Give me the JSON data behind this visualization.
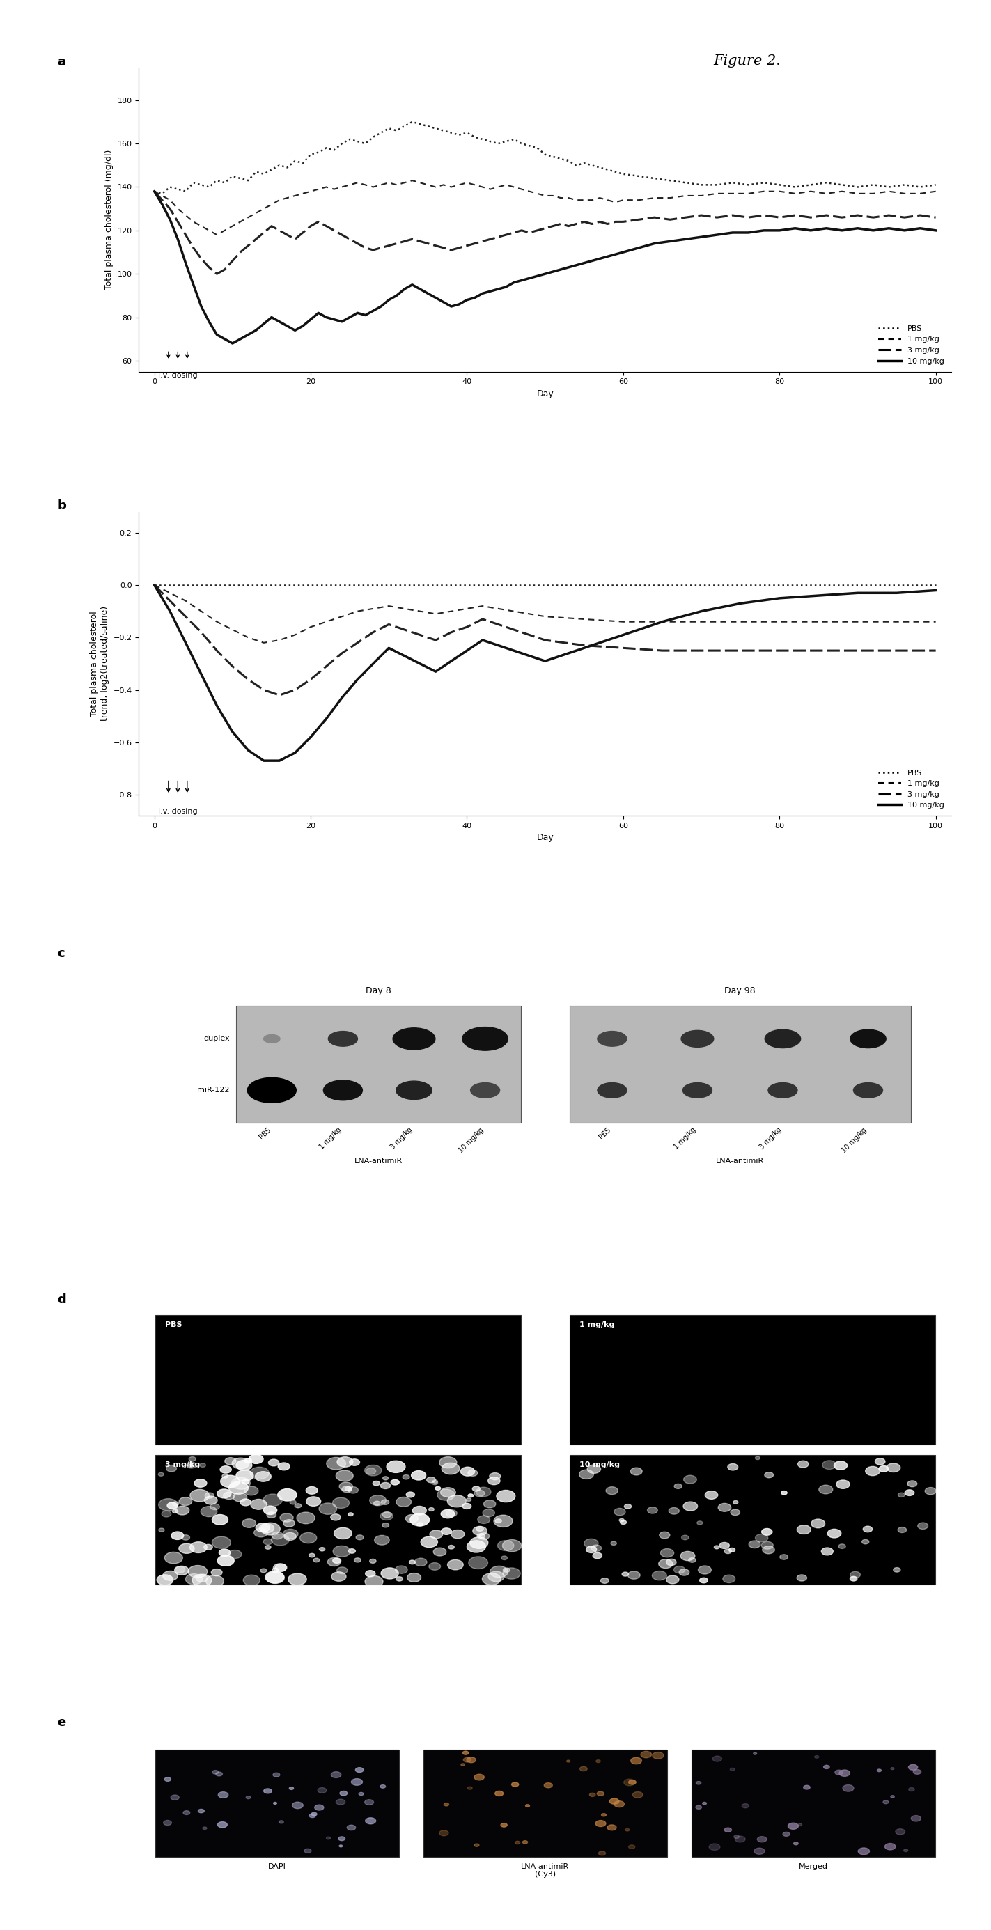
{
  "figure_title": "Figure 2.",
  "panel_a": {
    "ylabel": "Total plasma cholesterol (mg/dl)",
    "xlabel": "Day",
    "yticks": [
      60,
      80,
      100,
      120,
      140,
      160,
      180
    ],
    "xticks": [
      0,
      20,
      40,
      60,
      80,
      100
    ],
    "ylim": [
      55,
      195
    ],
    "xlim": [
      -2,
      102
    ],
    "PBS": {
      "x": [
        0,
        1,
        2,
        3,
        4,
        5,
        6,
        7,
        8,
        9,
        10,
        11,
        12,
        13,
        14,
        15,
        16,
        17,
        18,
        19,
        20,
        21,
        22,
        23,
        24,
        25,
        26,
        27,
        28,
        29,
        30,
        31,
        32,
        33,
        34,
        35,
        36,
        37,
        38,
        39,
        40,
        41,
        42,
        43,
        44,
        45,
        46,
        47,
        48,
        49,
        50,
        51,
        52,
        53,
        54,
        55,
        56,
        57,
        58,
        59,
        60,
        62,
        64,
        66,
        68,
        70,
        72,
        74,
        76,
        78,
        80,
        82,
        84,
        86,
        88,
        90,
        92,
        94,
        96,
        98,
        100
      ],
      "y": [
        138,
        137,
        140,
        139,
        138,
        142,
        141,
        140,
        143,
        142,
        145,
        144,
        143,
        147,
        146,
        148,
        150,
        149,
        152,
        151,
        155,
        156,
        158,
        157,
        160,
        162,
        161,
        160,
        163,
        165,
        167,
        166,
        168,
        170,
        169,
        168,
        167,
        166,
        165,
        164,
        165,
        163,
        162,
        161,
        160,
        161,
        162,
        160,
        159,
        158,
        155,
        154,
        153,
        152,
        150,
        151,
        150,
        149,
        148,
        147,
        146,
        145,
        144,
        143,
        142,
        141,
        141,
        142,
        141,
        142,
        141,
        140,
        141,
        142,
        141,
        140,
        141,
        140,
        141,
        140,
        141
      ]
    },
    "mg1": {
      "x": [
        0,
        1,
        2,
        3,
        4,
        5,
        6,
        7,
        8,
        9,
        10,
        11,
        12,
        13,
        14,
        15,
        16,
        17,
        18,
        19,
        20,
        21,
        22,
        23,
        24,
        25,
        26,
        27,
        28,
        29,
        30,
        31,
        32,
        33,
        34,
        35,
        36,
        37,
        38,
        39,
        40,
        41,
        42,
        43,
        44,
        45,
        46,
        47,
        48,
        49,
        50,
        51,
        52,
        53,
        54,
        55,
        56,
        57,
        58,
        59,
        60,
        62,
        64,
        66,
        68,
        70,
        72,
        74,
        76,
        78,
        80,
        82,
        84,
        86,
        88,
        90,
        92,
        94,
        96,
        98,
        100
      ],
      "y": [
        138,
        136,
        134,
        130,
        127,
        124,
        122,
        120,
        118,
        120,
        122,
        124,
        126,
        128,
        130,
        132,
        134,
        135,
        136,
        137,
        138,
        139,
        140,
        139,
        140,
        141,
        142,
        141,
        140,
        141,
        142,
        141,
        142,
        143,
        142,
        141,
        140,
        141,
        140,
        141,
        142,
        141,
        140,
        139,
        140,
        141,
        140,
        139,
        138,
        137,
        136,
        136,
        135,
        135,
        134,
        134,
        134,
        135,
        134,
        133,
        134,
        134,
        135,
        135,
        136,
        136,
        137,
        137,
        137,
        138,
        138,
        137,
        138,
        137,
        138,
        137,
        137,
        138,
        137,
        137,
        138
      ]
    },
    "mg3": {
      "x": [
        0,
        1,
        2,
        3,
        4,
        5,
        6,
        7,
        8,
        9,
        10,
        11,
        12,
        13,
        14,
        15,
        16,
        17,
        18,
        19,
        20,
        21,
        22,
        23,
        24,
        25,
        26,
        27,
        28,
        29,
        30,
        31,
        32,
        33,
        34,
        35,
        36,
        37,
        38,
        39,
        40,
        41,
        42,
        43,
        44,
        45,
        46,
        47,
        48,
        49,
        50,
        51,
        52,
        53,
        54,
        55,
        56,
        57,
        58,
        59,
        60,
        62,
        64,
        66,
        68,
        70,
        72,
        74,
        76,
        78,
        80,
        82,
        84,
        86,
        88,
        90,
        92,
        94,
        96,
        98,
        100
      ],
      "y": [
        138,
        134,
        130,
        124,
        118,
        112,
        107,
        103,
        100,
        102,
        106,
        110,
        113,
        116,
        119,
        122,
        120,
        118,
        116,
        119,
        122,
        124,
        122,
        120,
        118,
        116,
        114,
        112,
        111,
        112,
        113,
        114,
        115,
        116,
        115,
        114,
        113,
        112,
        111,
        112,
        113,
        114,
        115,
        116,
        117,
        118,
        119,
        120,
        119,
        120,
        121,
        122,
        123,
        122,
        123,
        124,
        123,
        124,
        123,
        124,
        124,
        125,
        126,
        125,
        126,
        127,
        126,
        127,
        126,
        127,
        126,
        127,
        126,
        127,
        126,
        127,
        126,
        127,
        126,
        127,
        126
      ]
    },
    "mg10": {
      "x": [
        0,
        1,
        2,
        3,
        4,
        5,
        6,
        7,
        8,
        9,
        10,
        11,
        12,
        13,
        14,
        15,
        16,
        17,
        18,
        19,
        20,
        21,
        22,
        23,
        24,
        25,
        26,
        27,
        28,
        29,
        30,
        31,
        32,
        33,
        34,
        35,
        36,
        37,
        38,
        39,
        40,
        41,
        42,
        43,
        44,
        45,
        46,
        47,
        48,
        49,
        50,
        51,
        52,
        53,
        54,
        55,
        56,
        57,
        58,
        59,
        60,
        62,
        64,
        66,
        68,
        70,
        72,
        74,
        76,
        78,
        80,
        82,
        84,
        86,
        88,
        90,
        92,
        94,
        96,
        98,
        100
      ],
      "y": [
        138,
        132,
        125,
        116,
        105,
        95,
        85,
        78,
        72,
        70,
        68,
        70,
        72,
        74,
        77,
        80,
        78,
        76,
        74,
        76,
        79,
        82,
        80,
        79,
        78,
        80,
        82,
        81,
        83,
        85,
        88,
        90,
        93,
        95,
        93,
        91,
        89,
        87,
        85,
        86,
        88,
        89,
        91,
        92,
        93,
        94,
        96,
        97,
        98,
        99,
        100,
        101,
        102,
        103,
        104,
        105,
        106,
        107,
        108,
        109,
        110,
        112,
        114,
        115,
        116,
        117,
        118,
        119,
        119,
        120,
        120,
        121,
        120,
        121,
        120,
        121,
        120,
        121,
        120,
        121,
        120
      ]
    }
  },
  "panel_b": {
    "ylabel": "Total plasma cholesterol\ntrend, log2(treated/saline)",
    "xlabel": "Day",
    "yticks": [
      0.2,
      0.0,
      -0.2,
      -0.4,
      -0.6,
      -0.8
    ],
    "xticks": [
      0,
      20,
      40,
      60,
      80,
      100
    ],
    "ylim": [
      -0.88,
      0.28
    ],
    "xlim": [
      -2,
      102
    ],
    "PBS": {
      "x": [
        0,
        2,
        4,
        6,
        8,
        10,
        12,
        14,
        16,
        18,
        20,
        22,
        24,
        26,
        28,
        30,
        32,
        34,
        36,
        38,
        40,
        42,
        44,
        46,
        48,
        50,
        52,
        54,
        56,
        58,
        60,
        65,
        70,
        75,
        80,
        85,
        90,
        95,
        100
      ],
      "y": [
        0,
        0,
        0,
        0,
        0,
        0,
        0,
        0,
        0,
        0,
        0,
        0,
        0,
        0,
        0,
        0,
        0,
        0,
        0,
        0,
        0,
        0,
        0,
        0,
        0,
        0,
        0,
        0,
        0,
        0,
        0,
        0,
        0,
        0,
        0,
        0,
        0,
        0,
        0
      ]
    },
    "mg1": {
      "x": [
        0,
        2,
        4,
        6,
        8,
        10,
        12,
        14,
        16,
        18,
        20,
        22,
        24,
        26,
        28,
        30,
        32,
        34,
        36,
        38,
        40,
        42,
        44,
        46,
        48,
        50,
        55,
        60,
        65,
        70,
        75,
        80,
        85,
        90,
        95,
        100
      ],
      "y": [
        0,
        -0.03,
        -0.06,
        -0.1,
        -0.14,
        -0.17,
        -0.2,
        -0.22,
        -0.21,
        -0.19,
        -0.16,
        -0.14,
        -0.12,
        -0.1,
        -0.09,
        -0.08,
        -0.09,
        -0.1,
        -0.11,
        -0.1,
        -0.09,
        -0.08,
        -0.09,
        -0.1,
        -0.11,
        -0.12,
        -0.13,
        -0.14,
        -0.14,
        -0.14,
        -0.14,
        -0.14,
        -0.14,
        -0.14,
        -0.14,
        -0.14
      ]
    },
    "mg3": {
      "x": [
        0,
        2,
        4,
        6,
        8,
        10,
        12,
        14,
        16,
        18,
        20,
        22,
        24,
        26,
        28,
        30,
        32,
        34,
        36,
        38,
        40,
        42,
        44,
        46,
        48,
        50,
        55,
        60,
        65,
        70,
        75,
        80,
        85,
        90,
        95,
        100
      ],
      "y": [
        0,
        -0.06,
        -0.12,
        -0.18,
        -0.25,
        -0.31,
        -0.36,
        -0.4,
        -0.42,
        -0.4,
        -0.36,
        -0.31,
        -0.26,
        -0.22,
        -0.18,
        -0.15,
        -0.17,
        -0.19,
        -0.21,
        -0.18,
        -0.16,
        -0.13,
        -0.15,
        -0.17,
        -0.19,
        -0.21,
        -0.23,
        -0.24,
        -0.25,
        -0.25,
        -0.25,
        -0.25,
        -0.25,
        -0.25,
        -0.25,
        -0.25
      ]
    },
    "mg10": {
      "x": [
        0,
        2,
        4,
        6,
        8,
        10,
        12,
        14,
        16,
        18,
        20,
        22,
        24,
        26,
        28,
        30,
        32,
        34,
        36,
        38,
        40,
        42,
        44,
        46,
        48,
        50,
        55,
        60,
        65,
        70,
        75,
        80,
        85,
        90,
        95,
        100
      ],
      "y": [
        0,
        -0.1,
        -0.22,
        -0.34,
        -0.46,
        -0.56,
        -0.63,
        -0.67,
        -0.67,
        -0.64,
        -0.58,
        -0.51,
        -0.43,
        -0.36,
        -0.3,
        -0.24,
        -0.27,
        -0.3,
        -0.33,
        -0.29,
        -0.25,
        -0.21,
        -0.23,
        -0.25,
        -0.27,
        -0.29,
        -0.24,
        -0.19,
        -0.14,
        -0.1,
        -0.07,
        -0.05,
        -0.04,
        -0.03,
        -0.03,
        -0.02
      ]
    }
  },
  "legend_labels": [
    "PBS",
    "1 mg/kg",
    "3 mg/kg",
    "10 mg/kg"
  ],
  "line_styles": {
    "PBS": {
      "linestyle": "dotted",
      "linewidth": 1.8,
      "color": "#222222",
      "dashes": null
    },
    "mg1": {
      "linestyle": "dashed",
      "linewidth": 1.5,
      "color": "#222222",
      "dashes": [
        4,
        3
      ]
    },
    "mg3": {
      "linestyle": "dashed",
      "linewidth": 2.2,
      "color": "#222222",
      "dashes": [
        6,
        2
      ]
    },
    "mg10": {
      "linestyle": "solid",
      "linewidth": 2.5,
      "color": "#111111",
      "dashes": null
    }
  },
  "figure_bg": "#ffffff",
  "panel_c": {
    "bg_color": "#b8b8b8",
    "day8_title": "Day 8",
    "day98_title": "Day 98",
    "row_labels": [
      "duplex",
      "miR-122"
    ],
    "col_labels": [
      "PBS",
      "1 mg/kg",
      "3 mg/kg",
      "10 mg/kg"
    ],
    "group_label": "LNA-antimiR"
  },
  "panel_d": {
    "labels": [
      "PBS",
      "1 mg/kg",
      "3 mg/kg",
      "10 mg/kg"
    ],
    "bg_colors": [
      "#000000",
      "#000000",
      "#111111",
      "#111111"
    ]
  },
  "panel_e": {
    "labels": [
      "DAPI",
      "LNA-antimiR\n(Cy3)",
      "Merged"
    ],
    "bg_colors": [
      "#050508",
      "#050508",
      "#050508"
    ]
  }
}
